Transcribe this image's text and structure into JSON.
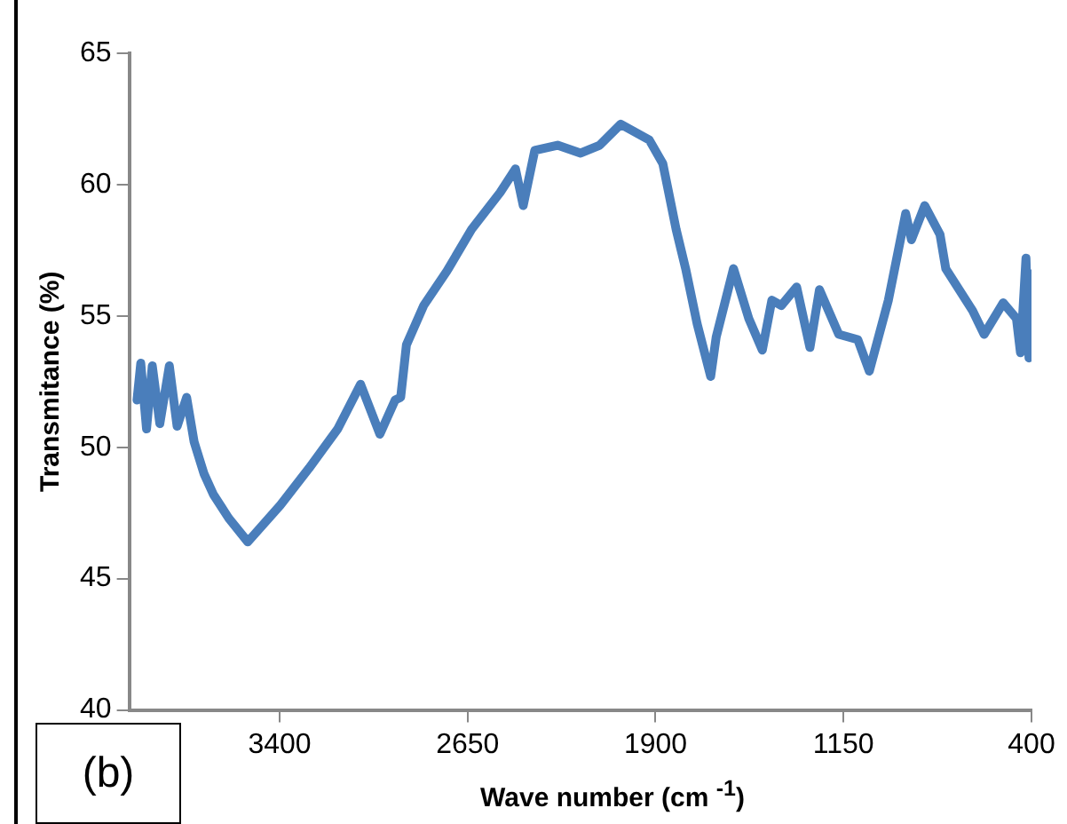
{
  "chart_data": {
    "type": "line",
    "xlabel": "Wave number (cm $^{-1}$)",
    "ylabel": "Transmitance (%)",
    "annotations": [
      "(b)"
    ],
    "xlim": [
      4000,
      400
    ],
    "xticks": [
      3400,
      2650,
      1900,
      1150,
      400
    ],
    "ylim": [
      40,
      65
    ],
    "yticks": [
      40,
      45,
      50,
      55,
      60,
      65
    ],
    "grid": false,
    "marker": "none",
    "line_style": "solid",
    "series": [
      {
        "color": "#4a7ebb",
        "x": [
          3969,
          3954,
          3931,
          3908,
          3878,
          3840,
          3809,
          3771,
          3741,
          3702,
          3664,
          3603,
          3527,
          3397,
          3283,
          3168,
          3077,
          3000,
          2939,
          2917,
          2894,
          2825,
          2733,
          2634,
          2520,
          2459,
          2428,
          2382,
          2291,
          2199,
          2123,
          2039,
          1925,
          1871,
          1818,
          1780,
          1734,
          1680,
          1658,
          1589,
          1528,
          1474,
          1436,
          1398,
          1337,
          1284,
          1246,
          1169,
          1093,
          1047,
          971,
          902,
          879,
          826,
          765,
          742,
          635,
          589,
          513,
          460,
          444,
          422,
          410,
          400
        ],
        "values": [
          51.8,
          53.2,
          50.7,
          53.1,
          50.9,
          53.1,
          50.8,
          51.9,
          50.2,
          49.0,
          48.2,
          47.3,
          46.4,
          47.8,
          49.2,
          50.7,
          52.4,
          50.5,
          51.8,
          51.9,
          53.9,
          55.4,
          56.7,
          58.3,
          59.7,
          60.6,
          59.2,
          61.3,
          61.5,
          61.2,
          61.5,
          62.3,
          61.7,
          60.8,
          58.3,
          56.8,
          54.7,
          52.7,
          54.2,
          56.8,
          54.9,
          53.7,
          55.6,
          55.4,
          56.1,
          53.8,
          56.0,
          54.3,
          54.1,
          52.9,
          55.6,
          58.9,
          57.9,
          59.2,
          58.1,
          56.8,
          55.2,
          54.3,
          55.5,
          54.9,
          53.6,
          57.2,
          53.4,
          56.6
        ]
      }
    ]
  }
}
